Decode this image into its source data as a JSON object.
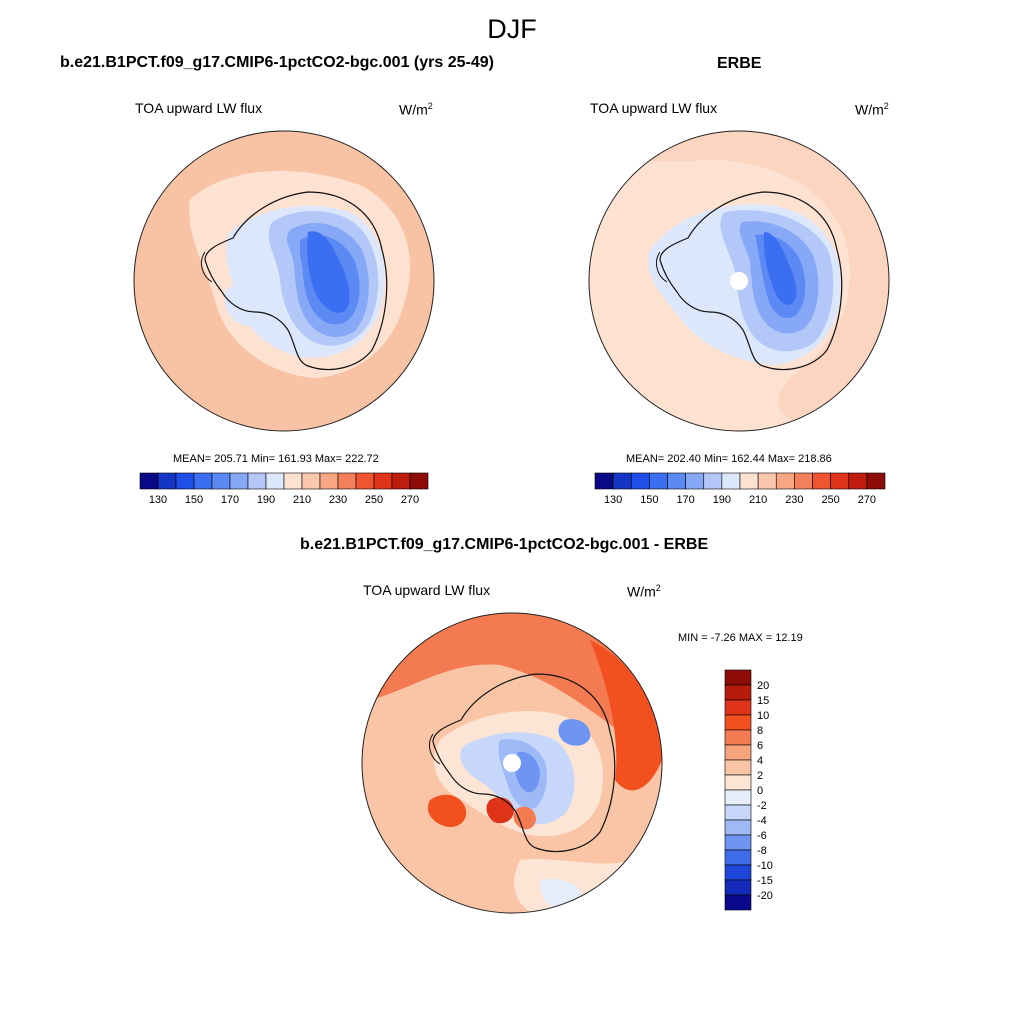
{
  "figure": {
    "title": "DJF"
  },
  "chart_data": [
    {
      "type": "heatmap",
      "projection": "south-polar-stereographic",
      "title": "b.e21.B1PCT.f09_g17.CMIP6-1pctCO2-bgc.001 (yrs 25-49)",
      "variable": "TOA upward LW flux",
      "units_base": "W/m",
      "units_exp": "2",
      "stats": {
        "mean": "205.71",
        "min": "161.93",
        "max": "222.72"
      },
      "stats_text": "MEAN= 205.71  Min= 161.93  Max= 222.72",
      "colorbar": {
        "orientation": "horizontal",
        "levels": [
          120,
          130,
          140,
          150,
          160,
          170,
          180,
          190,
          200,
          210,
          220,
          230,
          240,
          250,
          260,
          270,
          280
        ],
        "tick_labels": [
          "130",
          "150",
          "170",
          "190",
          "210",
          "230",
          "250",
          "270"
        ],
        "colors": [
          "#0a0a86",
          "#1535c4",
          "#1f4fe6",
          "#3b6ef0",
          "#5b8af4",
          "#86a8f6",
          "#b3c8f8",
          "#dce7fb",
          "#fde2d2",
          "#fbc8ae",
          "#f8a684",
          "#f4805b",
          "#ef5531",
          "#e0341a",
          "#c01c0e",
          "#8e0c08"
        ]
      }
    },
    {
      "type": "heatmap",
      "projection": "south-polar-stereographic",
      "title": "ERBE",
      "variable": "TOA upward LW flux",
      "units_base": "W/m",
      "units_exp": "2",
      "stats": {
        "mean": "202.40",
        "min": "162.44",
        "max": "218.86"
      },
      "stats_text": "MEAN= 202.40  Min= 162.44  Max= 218.86",
      "colorbar": {
        "orientation": "horizontal",
        "levels": [
          120,
          130,
          140,
          150,
          160,
          170,
          180,
          190,
          200,
          210,
          220,
          230,
          240,
          250,
          260,
          270,
          280
        ],
        "tick_labels": [
          "130",
          "150",
          "170",
          "190",
          "210",
          "230",
          "250",
          "270"
        ],
        "colors": [
          "#0a0a86",
          "#1535c4",
          "#1f4fe6",
          "#3b6ef0",
          "#5b8af4",
          "#86a8f6",
          "#b3c8f8",
          "#dce7fb",
          "#fde2d2",
          "#fbc8ae",
          "#f8a684",
          "#f4805b",
          "#ef5531",
          "#e0341a",
          "#c01c0e",
          "#8e0c08"
        ]
      }
    },
    {
      "type": "heatmap",
      "projection": "south-polar-stereographic",
      "title": "b.e21.B1PCT.f09_g17.CMIP6-1pctCO2-bgc.001 - ERBE",
      "variable": "TOA upward LW flux",
      "units_base": "W/m",
      "units_exp": "2",
      "stats": {
        "min": "-7.26",
        "max": "12.19"
      },
      "stats_text": "MIN =  -7.26 MAX =  12.19",
      "colorbar": {
        "orientation": "vertical",
        "levels": [
          -20,
          -15,
          -10,
          -8,
          -6,
          -4,
          -2,
          0,
          2,
          4,
          6,
          8,
          10,
          15,
          20
        ],
        "tick_labels": [
          "20",
          "15",
          "10",
          "8",
          "6",
          "4",
          "2",
          "0",
          "-2",
          "-4",
          "-6",
          "-8",
          "-10",
          "-15",
          "-20"
        ],
        "colors_top_to_bottom": [
          "#8e0c08",
          "#b81a0c",
          "#e0341a",
          "#f2501f",
          "#f47a52",
          "#f7a47e",
          "#f9c5a6",
          "#fde5d5",
          "#e6eefc",
          "#c6d7fa",
          "#9db9f6",
          "#6e95f2",
          "#3e6bea",
          "#1f46da",
          "#1329b8",
          "#08098c"
        ]
      }
    }
  ]
}
